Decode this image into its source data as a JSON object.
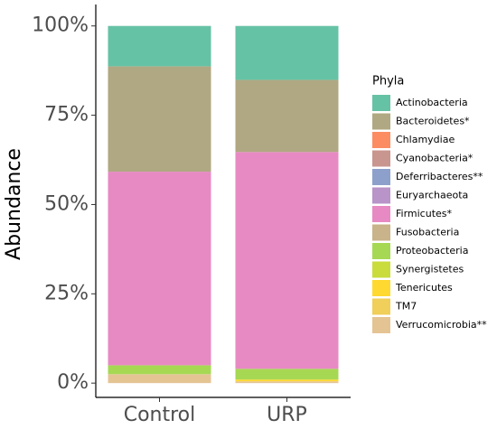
{
  "chart_data": {
    "type": "stacked_bar",
    "y_label": "Abundance",
    "legend_title": "Phyla",
    "categories": [
      "Control",
      "URP"
    ],
    "series": [
      {
        "name": "Actinobacteria",
        "color": "#66c2a5",
        "values": [
          11.3,
          15.1
        ]
      },
      {
        "name": "Bacteroidetes*",
        "color": "#b0a882",
        "values": [
          29.5,
          20.2
        ]
      },
      {
        "name": "Chlamydiae",
        "color": "#fc8d62",
        "values": [
          0,
          0
        ]
      },
      {
        "name": "Cyanobacteria*",
        "color": "#c9958f",
        "values": [
          0,
          0
        ]
      },
      {
        "name": "Deferribacteres**",
        "color": "#8da0cb",
        "values": [
          0,
          0
        ]
      },
      {
        "name": "Euryarchaeota",
        "color": "#b894c8",
        "values": [
          0,
          0
        ]
      },
      {
        "name": "Firmicutes*",
        "color": "#e78ac3",
        "values": [
          54.2,
          60.7
        ]
      },
      {
        "name": "Fusobacteria",
        "color": "#c8b38a",
        "values": [
          0,
          0
        ]
      },
      {
        "name": "Proteobacteria",
        "color": "#a6d854",
        "values": [
          2.5,
          3
        ]
      },
      {
        "name": "Synergistetes",
        "color": "#c9dc3c",
        "values": [
          0,
          0
        ]
      },
      {
        "name": "Tenericutes",
        "color": "#ffd92f",
        "values": [
          0,
          0.5
        ]
      },
      {
        "name": "TM7",
        "color": "#f0cf5a",
        "values": [
          0,
          0
        ]
      },
      {
        "name": "Verrucomicrobia**",
        "color": "#e5c494",
        "values": [
          2.5,
          0.5
        ]
      }
    ],
    "ylim": [
      -4,
      106
    ],
    "yticks": [
      {
        "value": 0,
        "label": "0%"
      },
      {
        "value": 25,
        "label": "25%"
      },
      {
        "value": 50,
        "label": "50%"
      },
      {
        "value": 75,
        "label": "75%"
      },
      {
        "value": 100,
        "label": "100%"
      }
    ]
  }
}
